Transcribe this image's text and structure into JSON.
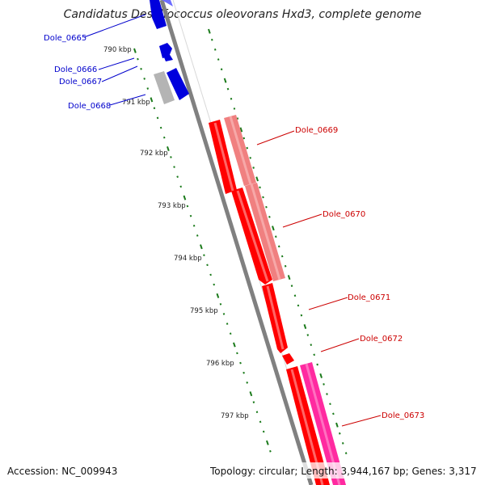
{
  "title": "Candidatus Desulfococcus oleovorans Hxd3, complete genome",
  "footer": {
    "accession": "Accession: NC_009943",
    "summary": "Topology: circular; Length: 3,944,167 bp; Genes: 3,317"
  },
  "ticks": [
    "790 kbp",
    "791 kbp",
    "792 kbp",
    "793 kbp",
    "794 kbp",
    "795 kbp",
    "796 kbp",
    "797 kbp"
  ],
  "genes": [
    {
      "name": "Dole_0665",
      "strand": "forward",
      "color": "#0000cc"
    },
    {
      "name": "Dole_0666",
      "strand": "forward",
      "color": "#0000cc"
    },
    {
      "name": "Dole_0667",
      "strand": "forward",
      "color": "#0000cc"
    },
    {
      "name": "Dole_0668",
      "strand": "forward",
      "color": "#0000cc"
    },
    {
      "name": "Dole_0669",
      "strand": "reverse",
      "color": "#cc0000"
    },
    {
      "name": "Dole_0670",
      "strand": "reverse",
      "color": "#cc0000"
    },
    {
      "name": "Dole_0671",
      "strand": "reverse",
      "color": "#cc0000"
    },
    {
      "name": "Dole_0672",
      "strand": "reverse",
      "color": "#cc0000"
    },
    {
      "name": "Dole_0673",
      "strand": "reverse",
      "color": "#cc0000"
    }
  ],
  "colors": {
    "backbone": "#808080",
    "tick": "#1a7a1a",
    "forward_cds": "#0000dd",
    "reverse_cds": "#ff0000",
    "light_cds": "#f08080",
    "pink_cds": "#ff2aa0",
    "gray_feature": "#b4b4b4"
  }
}
